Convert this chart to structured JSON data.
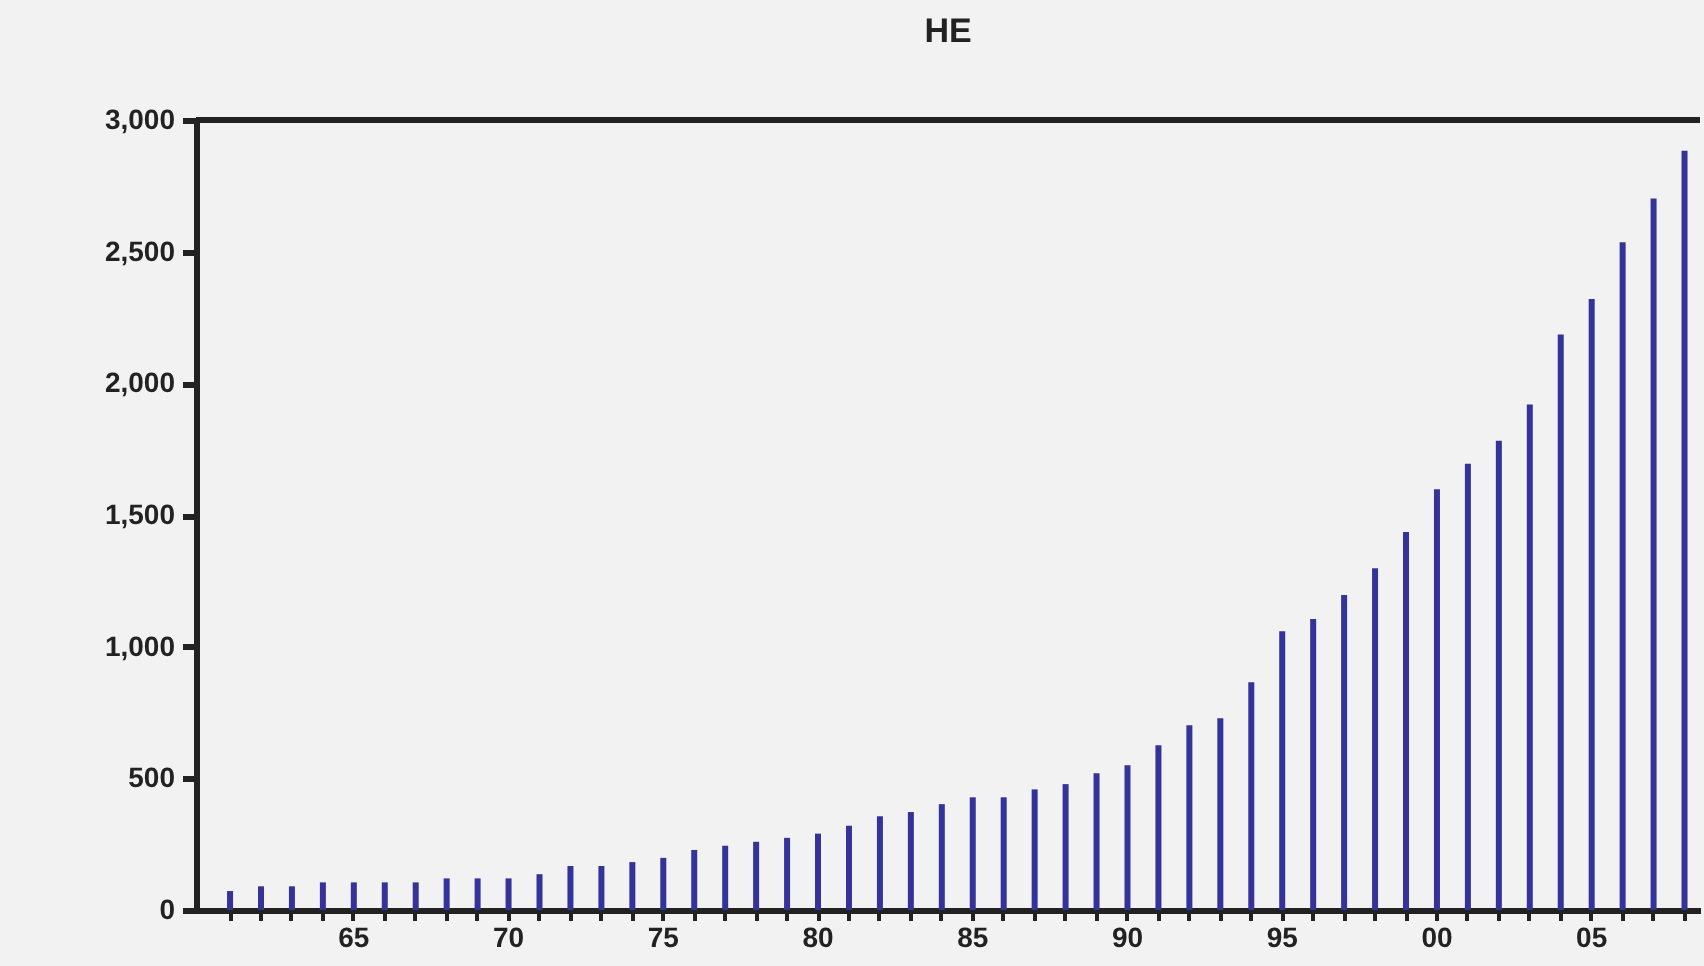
{
  "chart_data": {
    "type": "bar",
    "title": "HE",
    "categories": [
      null,
      null,
      null,
      null,
      "65",
      null,
      null,
      null,
      null,
      "70",
      null,
      null,
      null,
      null,
      "75",
      null,
      null,
      null,
      null,
      "80",
      null,
      null,
      null,
      null,
      "85",
      null,
      null,
      null,
      null,
      "90",
      null,
      null,
      null,
      null,
      "95",
      null,
      null,
      null,
      null,
      "00",
      null,
      null,
      null,
      null,
      "05",
      null,
      null,
      null
    ],
    "series": [
      {
        "color": "#333399",
        "values": [
          72,
          90,
          90,
          105,
          105,
          105,
          105,
          120,
          120,
          120,
          136,
          167,
          167,
          182,
          198,
          228,
          244,
          259,
          274,
          290,
          320,
          356,
          372,
          402,
          428,
          428,
          458,
          478,
          519,
          550,
          626,
          702,
          728,
          865,
          1059,
          1105,
          1196,
          1298,
          1435,
          1598,
          1695,
          1782,
          1920,
          2185,
          2320,
          2536,
          2702,
          2883
        ]
      }
    ],
    "ylim": [
      0,
      3000
    ],
    "yticks": [
      {
        "value": 0,
        "label": "0"
      },
      {
        "value": 500,
        "label": "500"
      },
      {
        "value": 1000,
        "label": "1,000"
      },
      {
        "value": 1500,
        "label": "1,500"
      },
      {
        "value": 2000,
        "label": "2,000"
      },
      {
        "value": 2500,
        "label": "2,500"
      },
      {
        "value": 3000,
        "label": "3,000"
      }
    ],
    "grid": false,
    "legend": false
  }
}
